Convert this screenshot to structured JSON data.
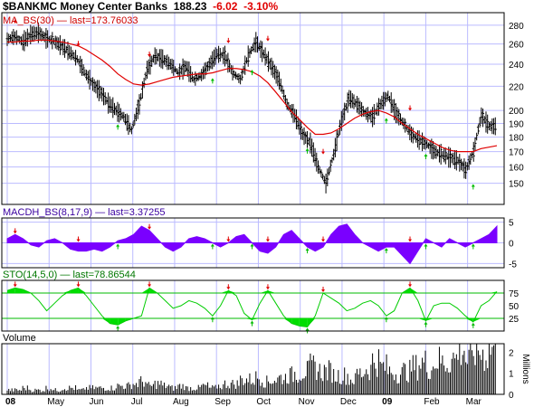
{
  "header": {
    "symbol": "$BANKMC",
    "name": "Money Center Banks",
    "last": "188.23",
    "change": "-6.02",
    "change_pct": "-3.10%",
    "down_color": "#e00000"
  },
  "panels": {
    "ma_label": "MA_BS(30)",
    "ma_last": "last=173.76033",
    "macd_label": "MACDH_BS(8,17,9)",
    "macd_last": "last=3.37255",
    "sto_label": "STO(14,5,0)",
    "sto_last": "last=78.86544",
    "volume_label": "Volume",
    "volume_unit": "Millions"
  },
  "colors": {
    "price_bars": "#000000",
    "moving_average": "#e00000",
    "macd_fill": "#7a00ff",
    "sto_line": "#00cc00",
    "sto_fill": "#00dd00",
    "buy_arrow": "#00bb00",
    "sell_arrow": "#e00000",
    "grid": "#bbbbff",
    "reference_line": "#00bb00"
  },
  "chart_data": [
    {
      "type": "ohlc",
      "name": "price",
      "x_tick_labels": [
        "08",
        "May",
        "Jun",
        "Jul",
        "Aug",
        "Sep",
        "Oct",
        "Nov",
        "Dec",
        "09",
        "Feb",
        "Mar"
      ],
      "bold_ticks": [
        "08",
        "09"
      ],
      "y_ticks": [
        150,
        160,
        170,
        180,
        190,
        200,
        220,
        240,
        260,
        280
      ],
      "ylim": [
        140,
        290
      ],
      "y_scale": "log",
      "weekly_close": [
        265,
        268,
        262,
        270,
        272,
        266,
        263,
        258,
        252,
        245,
        232,
        222,
        215,
        206,
        200,
        195,
        185,
        205,
        235,
        248,
        245,
        240,
        232,
        238,
        226,
        230,
        240,
        250,
        248,
        232,
        226,
        248,
        262,
        250,
        238,
        225,
        205,
        196,
        182,
        176,
        160,
        150,
        168,
        192,
        210,
        205,
        198,
        195,
        205,
        212,
        198,
        190,
        182,
        178,
        175,
        170,
        168,
        166,
        164,
        158,
        170,
        196,
        188
      ],
      "ma_30": [
        262,
        262,
        263,
        263,
        264,
        264,
        263,
        262,
        260,
        258,
        254,
        249,
        244,
        238,
        231,
        226,
        222,
        221,
        222,
        224,
        226,
        228,
        229,
        230,
        231,
        231,
        232,
        234,
        236,
        236,
        235,
        233,
        229,
        223,
        215,
        207,
        199,
        193,
        187,
        182,
        182,
        183,
        186,
        190,
        194,
        197,
        199,
        200,
        198,
        195,
        190,
        186,
        182,
        179,
        176,
        173,
        171,
        170,
        170,
        170,
        172,
        173,
        174
      ]
    },
    {
      "type": "area",
      "name": "MACDH_BS(8,17,9)",
      "y_ticks": [
        5,
        0,
        -5
      ],
      "ylim": [
        -6,
        6
      ],
      "values": [
        1,
        2,
        1,
        -0.5,
        -1,
        0.5,
        1,
        0,
        -1.5,
        -2,
        -2,
        -1.5,
        -2,
        -1,
        0.5,
        1,
        2,
        4,
        3,
        1,
        -1,
        -2,
        -1,
        1,
        1.5,
        1,
        0,
        -1,
        0,
        1.5,
        2,
        0,
        -2,
        -2.5,
        -1,
        2,
        3,
        1,
        -1,
        -2,
        -1,
        2,
        4,
        4.5,
        2,
        0,
        -1,
        -2,
        -1,
        -1,
        -3,
        -5,
        -2,
        1,
        0,
        -1,
        1,
        0,
        -1,
        0,
        1,
        2,
        4
      ]
    },
    {
      "type": "area",
      "name": "STO(14,5,0)",
      "y_ticks": [
        75,
        50,
        25
      ],
      "ylim": [
        0,
        100
      ],
      "reference_lines": [
        75,
        25
      ],
      "values": [
        80,
        85,
        82,
        75,
        60,
        40,
        55,
        70,
        80,
        85,
        70,
        50,
        30,
        15,
        12,
        20,
        25,
        30,
        85,
        75,
        60,
        45,
        50,
        60,
        55,
        45,
        30,
        50,
        80,
        70,
        35,
        22,
        55,
        80,
        55,
        30,
        15,
        10,
        8,
        30,
        75,
        65,
        55,
        40,
        45,
        55,
        60,
        50,
        30,
        40,
        75,
        85,
        60,
        20,
        50,
        55,
        55,
        45,
        30,
        18,
        50,
        60,
        78
      ]
    },
    {
      "type": "bar",
      "name": "Volume",
      "y_ticks": [
        2,
        1,
        0
      ],
      "ylim": [
        0,
        2.4
      ],
      "unit": "Millions",
      "values": [
        0.2,
        0.2,
        0.3,
        0.2,
        0.2,
        0.3,
        0.2,
        0.3,
        0.3,
        0.2,
        0.3,
        0.3,
        0.3,
        0.3,
        0.4,
        0.4,
        0.5,
        0.6,
        0.4,
        0.5,
        0.4,
        0.3,
        0.4,
        0.3,
        0.3,
        0.4,
        0.3,
        0.4,
        0.5,
        0.5,
        0.7,
        0.7,
        0.8,
        0.6,
        0.7,
        0.8,
        0.9,
        1.0,
        1.1,
        1.3,
        1.1,
        1.1,
        0.9,
        0.9,
        0.7,
        1.0,
        1.2,
        1.6,
        1.3,
        1.1,
        1.0,
        1.1,
        1.3,
        1.5,
        1.3,
        1.6,
        1.5,
        1.7,
        2.2,
        1.6,
        2.1,
        1.9,
        2.2
      ]
    }
  ]
}
